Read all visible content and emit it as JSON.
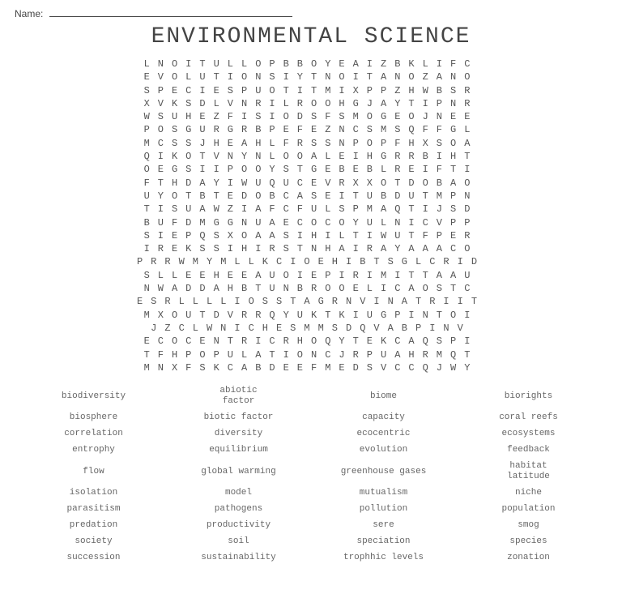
{
  "header": {
    "name_label": "Name:"
  },
  "title": "ENVIRONMENTAL SCIENCE",
  "grid": {
    "font": "monospace",
    "color": "#555555",
    "background": "#ffffff",
    "rows": [
      "LNOITULLOPBBOYEAIZBKLIFC",
      "EVOLUTIONSIYTNOITANOZANO",
      "SPECIESPUOTITMIXPPZHWBSR",
      "XVKSDLVNRILROOHGJAYTIPNR",
      "WSUHEZFISIODSFSMOGEOJNEE",
      "POSGURGRBPEFEZNCSMSQFFGL",
      "MCSSJHEAHLFRSSNPOPFHXSOA",
      "QIKOTVNYNLOOALEIHGRRBIHT",
      "OEGSIIPOOYSTGEBEBLREIFTI",
      "FTHDAYIWUQUCEVRXXOTDOBAO",
      "UYOTBTEDOBCASEITUBDUTMPN",
      "TISUAWZIAFCFULSPMAQTIJSD",
      "BUFDMGGNUAECOCOYULNICVPP",
      "SIEPQSXOAASIHILTIWUTFPER",
      "IREKSSIHIRSTNHAIRAYAAACO",
      "PRRWMYMLLKCIOEHIBTSGLCRID",
      "SLLEEHEEAUOIEPIRIMITTAAU",
      "NWADDAHBTUNBROOELICAOSTC",
      "ESRLLLLIOSSTAGRNVINATRIIT",
      "MXOUTDVRRQYUKTKIUGPINTOI",
      "JZCLWNICHESMMSDQVABPINV",
      "ECOCENTRICRHOQYTEKCAQSPI",
      "TFHPOPULATIONCJRPUAHRMQT",
      "MNXFSKCABDEEFMEDSVCCQJWY"
    ]
  },
  "word_bank": {
    "font": "monospace",
    "text_color": "#666666",
    "words": [
      [
        "biodiversity",
        "abiotic\nfactor",
        "biome",
        "biorights"
      ],
      [
        "biosphere",
        "biotic factor",
        "capacity",
        "coral reefs"
      ],
      [
        "correlation",
        "diversity",
        "ecocentric",
        "ecosystems"
      ],
      [
        "entrophy",
        "equilibrium",
        "evolution",
        "feedback"
      ],
      [
        "flow",
        "global warming",
        "greenhouse gases",
        "habitat\nlatitude"
      ],
      [
        "isolation",
        "model",
        "mutualism",
        "niche"
      ],
      [
        "parasitism",
        "pathogens",
        "pollution",
        "population"
      ],
      [
        "predation",
        "productivity",
        "sere",
        "smog"
      ],
      [
        "society",
        "soil",
        "speciation",
        "species"
      ],
      [
        "succession",
        "sustainability",
        "trophhic levels",
        "zonation"
      ]
    ]
  }
}
